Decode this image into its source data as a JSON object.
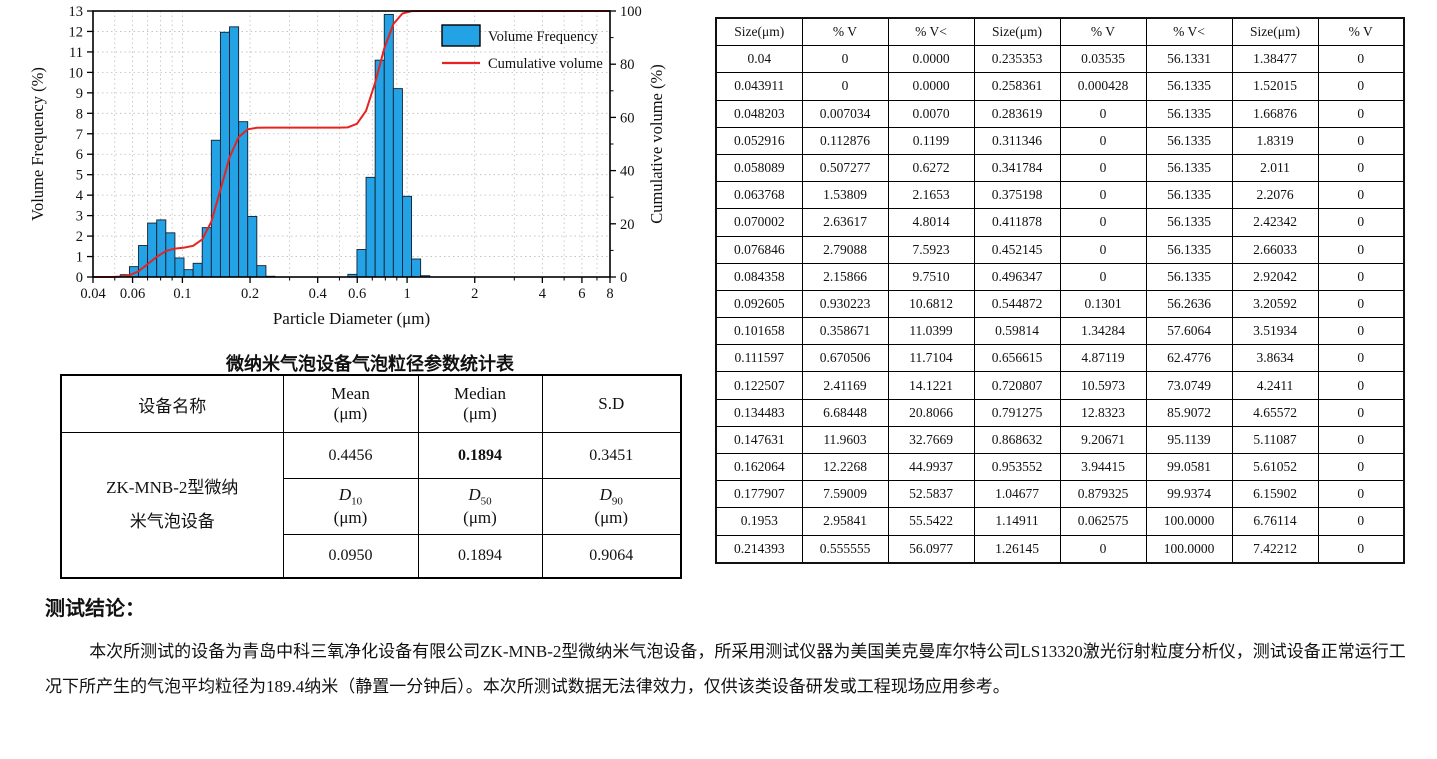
{
  "colors": {
    "bar": "#23a2e6",
    "bar_stroke": "#14202e",
    "line": "#e62320",
    "grid": "#bcbcbc",
    "axis": "#000000"
  },
  "chart_data": {
    "type": "bar",
    "subtype": "histogram-with-cumulative-line",
    "title": "",
    "xlabel": "Particle Diameter  (μm)",
    "ylabel_left": "Volume Frequency (%)",
    "ylabel_right": "Cumulative volume (%)",
    "x_scale": "log",
    "xlim": [
      0.04,
      8
    ],
    "ylim_left": [
      0,
      13
    ],
    "ylim_right": [
      0,
      100
    ],
    "x_ticks": [
      0.04,
      0.06,
      0.1,
      0.2,
      0.4,
      0.6,
      1,
      2,
      4,
      6,
      8
    ],
    "x_tick_labels": [
      "0.04",
      "0.06",
      "0.1",
      "0.2",
      "0.4",
      "0.6",
      "1",
      "2",
      "4",
      "6",
      "8"
    ],
    "y_ticks_left": [
      0,
      1,
      2,
      3,
      4,
      5,
      6,
      7,
      8,
      9,
      10,
      11,
      12,
      13
    ],
    "y_ticks_right": [
      0,
      20,
      40,
      60,
      80,
      100
    ],
    "grid": true,
    "legend_position": "top-right",
    "legend": [
      {
        "label": "Volume Frequency",
        "type": "bar",
        "color": "#23a2e6"
      },
      {
        "label": "Cumulative volume",
        "type": "line",
        "color": "#e62320"
      }
    ],
    "bin_edges_um": [
      0.04,
      0.043911,
      0.048203,
      0.052916,
      0.058089,
      0.063768,
      0.070002,
      0.076846,
      0.084358,
      0.092605,
      0.101658,
      0.111597,
      0.122507,
      0.134483,
      0.147631,
      0.162064,
      0.177907,
      0.1953,
      0.214393,
      0.235353,
      0.258361,
      0.283619,
      0.311346,
      0.341784,
      0.375198,
      0.411878,
      0.452145,
      0.496347,
      0.544872,
      0.59814,
      0.656615,
      0.720807,
      0.791275,
      0.868632,
      0.953552,
      1.04677,
      1.14911,
      1.26145,
      1.38477,
      1.52015,
      1.66876,
      1.8319,
      2.011,
      2.2076,
      2.42342,
      2.66033,
      2.92042,
      3.20592,
      3.51934,
      3.8634,
      4.2411,
      4.65572,
      5.11087,
      5.61052,
      6.15902,
      6.76114,
      7.42212
    ],
    "series": [
      {
        "name": "Volume Frequency",
        "axis": "left",
        "values": [
          0,
          0,
          0.007034,
          0.112876,
          0.507277,
          1.53809,
          2.63617,
          2.79088,
          2.15866,
          0.930223,
          0.358671,
          0.670506,
          2.41169,
          6.68448,
          11.9603,
          12.2268,
          7.59009,
          2.95841,
          0.555555,
          0.03535,
          0.000428,
          0,
          0,
          0,
          0,
          0,
          0,
          0,
          0.1301,
          1.34284,
          4.87119,
          10.5973,
          12.8323,
          9.20671,
          3.94415,
          0.879325,
          0.062575,
          0,
          0,
          0,
          0,
          0,
          0,
          0,
          0,
          0,
          0,
          0,
          0,
          0,
          0,
          0,
          0,
          0,
          0,
          0,
          0
        ]
      },
      {
        "name": "Cumulative volume",
        "axis": "right",
        "values": [
          0,
          0,
          0.007,
          0.1199,
          0.6272,
          2.1653,
          4.8014,
          7.5923,
          9.751,
          10.6812,
          11.0399,
          11.7104,
          14.1221,
          20.8066,
          32.7669,
          44.9937,
          52.5837,
          55.5422,
          56.0977,
          56.1331,
          56.1335,
          56.1335,
          56.1335,
          56.1335,
          56.1335,
          56.1335,
          56.1335,
          56.1335,
          56.2636,
          57.6064,
          62.4776,
          73.0749,
          85.9072,
          95.1139,
          99.0581,
          99.9374,
          100,
          100,
          100,
          100,
          100,
          100,
          100,
          100,
          100,
          100,
          100,
          100,
          100,
          100,
          100,
          100,
          100,
          100,
          100,
          100,
          100
        ]
      }
    ]
  },
  "stats_table": {
    "title": "微纳米气泡设备气泡粒径参数统计表",
    "header": {
      "device": "设备名称",
      "mean_l1": "Mean",
      "mean_l2": "(μm)",
      "median_l1": "Median",
      "median_l2": "(μm)",
      "sd": "S.D"
    },
    "device_name": "ZK-MNB-2型微纳\n米气泡设备",
    "row1": {
      "mean": "0.4456",
      "median": "0.1894",
      "sd": "0.3451"
    },
    "d_labels": [
      {
        "sym": "D",
        "sub": "10",
        "unit": "(μm)"
      },
      {
        "sym": "D",
        "sub": "50",
        "unit": "(μm)"
      },
      {
        "sym": "D",
        "sub": "90",
        "unit": "(μm)"
      }
    ],
    "row3": {
      "d10": "0.0950",
      "d50": "0.1894",
      "d90": "0.9064"
    }
  },
  "right_table": {
    "columns": [
      "Size(μm)",
      "% V",
      "% V<",
      "Size(μm)",
      "% V",
      "% V<",
      "Size(μm)",
      "% V"
    ],
    "rows": [
      [
        "0.04",
        "0",
        "0.0000",
        "0.235353",
        "0.03535",
        "56.1331",
        "1.38477",
        "0"
      ],
      [
        "0.043911",
        "0",
        "0.0000",
        "0.258361",
        "0.000428",
        "56.1335",
        "1.52015",
        "0"
      ],
      [
        "0.048203",
        "0.007034",
        "0.0070",
        "0.283619",
        "0",
        "56.1335",
        "1.66876",
        "0"
      ],
      [
        "0.052916",
        "0.112876",
        "0.1199",
        "0.311346",
        "0",
        "56.1335",
        "1.8319",
        "0"
      ],
      [
        "0.058089",
        "0.507277",
        "0.6272",
        "0.341784",
        "0",
        "56.1335",
        "2.011",
        "0"
      ],
      [
        "0.063768",
        "1.53809",
        "2.1653",
        "0.375198",
        "0",
        "56.1335",
        "2.2076",
        "0"
      ],
      [
        "0.070002",
        "2.63617",
        "4.8014",
        "0.411878",
        "0",
        "56.1335",
        "2.42342",
        "0"
      ],
      [
        "0.076846",
        "2.79088",
        "7.5923",
        "0.452145",
        "0",
        "56.1335",
        "2.66033",
        "0"
      ],
      [
        "0.084358",
        "2.15866",
        "9.7510",
        "0.496347",
        "0",
        "56.1335",
        "2.92042",
        "0"
      ],
      [
        "0.092605",
        "0.930223",
        "10.6812",
        "0.544872",
        "0.1301",
        "56.2636",
        "3.20592",
        "0"
      ],
      [
        "0.101658",
        "0.358671",
        "11.0399",
        "0.59814",
        "1.34284",
        "57.6064",
        "3.51934",
        "0"
      ],
      [
        "0.111597",
        "0.670506",
        "11.7104",
        "0.656615",
        "4.87119",
        "62.4776",
        "3.8634",
        "0"
      ],
      [
        "0.122507",
        "2.41169",
        "14.1221",
        "0.720807",
        "10.5973",
        "73.0749",
        "4.2411",
        "0"
      ],
      [
        "0.134483",
        "6.68448",
        "20.8066",
        "0.791275",
        "12.8323",
        "85.9072",
        "4.65572",
        "0"
      ],
      [
        "0.147631",
        "11.9603",
        "32.7669",
        "0.868632",
        "9.20671",
        "95.1139",
        "5.11087",
        "0"
      ],
      [
        "0.162064",
        "12.2268",
        "44.9937",
        "0.953552",
        "3.94415",
        "99.0581",
        "5.61052",
        "0"
      ],
      [
        "0.177907",
        "7.59009",
        "52.5837",
        "1.04677",
        "0.879325",
        "99.9374",
        "6.15902",
        "0"
      ],
      [
        "0.1953",
        "2.95841",
        "55.5422",
        "1.14911",
        "0.062575",
        "100.0000",
        "6.76114",
        "0"
      ],
      [
        "0.214393",
        "0.555555",
        "56.0977",
        "1.26145",
        "0",
        "100.0000",
        "7.42212",
        "0"
      ]
    ]
  },
  "conclusion": {
    "heading": "测试结论：",
    "body": "本次所测试的设备为青岛中科三氧净化设备有限公司ZK-MNB-2型微纳米气泡设备，所采用测试仪器为美国美克曼库尔特公司LS13320激光衍射粒度分析仪，测试设备正常运行工况下所产生的气泡平均粒径为189.4纳米（静置一分钟后）。本次所测试数据无法律效力，仅供该类设备研发或工程现场应用参考。"
  }
}
